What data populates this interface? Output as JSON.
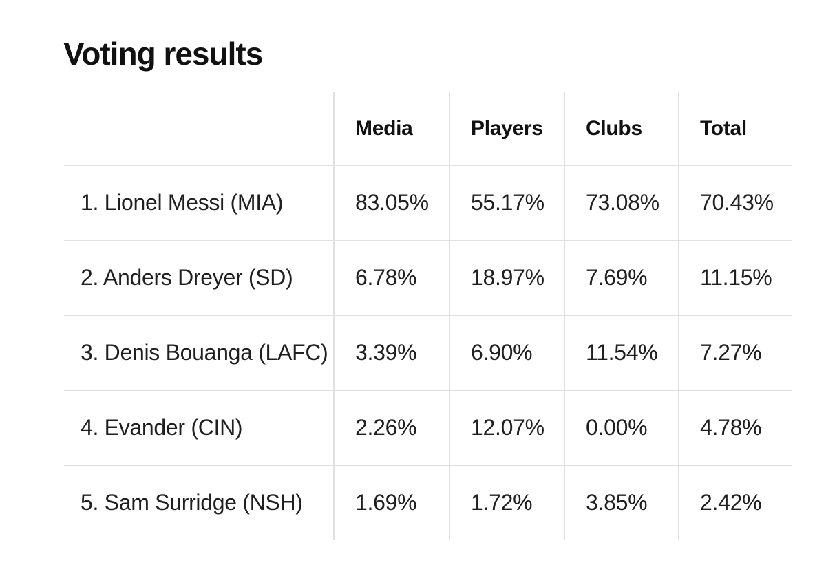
{
  "colors": {
    "background": "#ffffff",
    "text": "#1f1f1f",
    "heading": "#111111",
    "divider": "#e0e0e0"
  },
  "chart_data": {
    "type": "table",
    "title": "Voting results",
    "columns": [
      "Media",
      "Players",
      "Clubs",
      "Total"
    ],
    "rows": [
      {
        "name": "1. Lionel Messi (MIA)",
        "values": [
          "83.05%",
          "55.17%",
          "73.08%",
          "70.43%"
        ]
      },
      {
        "name": "2. Anders Dreyer (SD)",
        "values": [
          "6.78%",
          "18.97%",
          "7.69%",
          "11.15%"
        ]
      },
      {
        "name": "3. Denis Bouanga (LAFC)",
        "values": [
          "3.39%",
          "6.90%",
          "11.54%",
          "7.27%"
        ]
      },
      {
        "name": "4. Evander (CIN)",
        "values": [
          "2.26%",
          "12.07%",
          "0.00%",
          "4.78%"
        ]
      },
      {
        "name": "5. Sam Surridge (NSH)",
        "values": [
          "1.69%",
          "1.72%",
          "3.85%",
          "2.42%"
        ]
      }
    ]
  }
}
